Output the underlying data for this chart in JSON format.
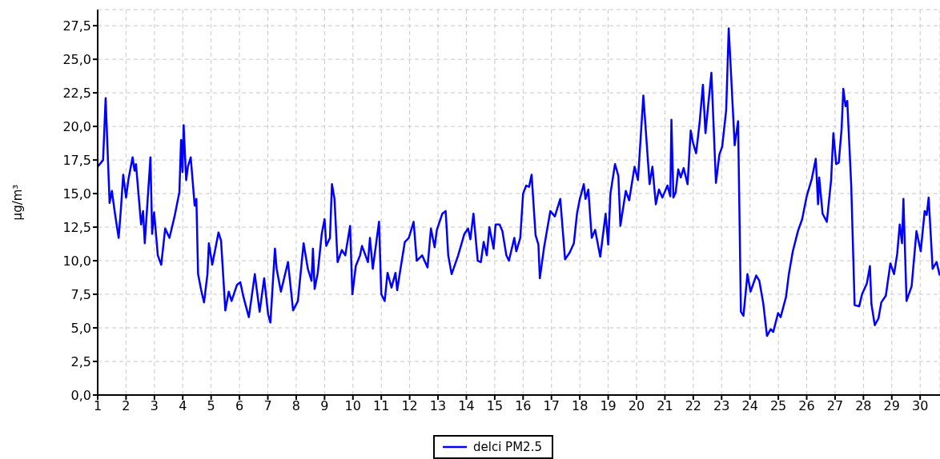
{
  "chart_data": {
    "type": "line",
    "ylabel": "µg/m³",
    "xlim": [
      1,
      30.7
    ],
    "ylim": [
      0,
      28.7
    ],
    "xticks": [
      1,
      2,
      3,
      4,
      5,
      6,
      7,
      8,
      9,
      10,
      11,
      12,
      13,
      14,
      15,
      16,
      17,
      18,
      19,
      20,
      21,
      22,
      23,
      24,
      25,
      26,
      27,
      28,
      29,
      30
    ],
    "yticks": [
      {
        "value": 0,
        "label": "0,0"
      },
      {
        "value": 2.5,
        "label": "2,5"
      },
      {
        "value": 5,
        "label": "5,0"
      },
      {
        "value": 7.5,
        "label": "7,5"
      },
      {
        "value": 10,
        "label": "10,0"
      },
      {
        "value": 12.5,
        "label": "12,5"
      },
      {
        "value": 15,
        "label": "15,0"
      },
      {
        "value": 17.5,
        "label": "17,5"
      },
      {
        "value": 20,
        "label": "20,0"
      },
      {
        "value": 22.5,
        "label": "22,5"
      },
      {
        "value": 25,
        "label": "25,0"
      },
      {
        "value": 27.5,
        "label": "27,5"
      }
    ],
    "grid": true,
    "legend": "bottom",
    "marker": "none",
    "line_style": "solid",
    "x": [
      1.0,
      1.19,
      1.28,
      1.42,
      1.5,
      1.61,
      1.74,
      1.82,
      1.9,
      2.0,
      2.08,
      2.23,
      2.3,
      2.35,
      2.53,
      2.6,
      2.66,
      2.86,
      2.92,
      2.99,
      3.12,
      3.24,
      3.38,
      3.53,
      3.71,
      3.88,
      3.94,
      3.99,
      4.03,
      4.12,
      4.18,
      4.28,
      4.42,
      4.48,
      4.54,
      4.65,
      4.75,
      4.87,
      4.92,
      5.04,
      5.26,
      5.35,
      5.5,
      5.62,
      5.72,
      5.91,
      6.03,
      6.14,
      6.33,
      6.54,
      6.71,
      6.87,
      7.01,
      7.09,
      7.25,
      7.31,
      7.46,
      7.71,
      7.89,
      8.06,
      8.26,
      8.41,
      8.54,
      8.59,
      8.65,
      8.76,
      8.9,
      9.0,
      9.06,
      9.19,
      9.26,
      9.35,
      9.46,
      9.61,
      9.73,
      9.9,
      9.98,
      10.1,
      10.25,
      10.32,
      10.53,
      10.6,
      10.7,
      10.92,
      11.0,
      11.12,
      11.22,
      11.36,
      11.5,
      11.56,
      11.67,
      11.83,
      11.97,
      12.14,
      12.25,
      12.44,
      12.63,
      12.75,
      12.88,
      12.96,
      13.15,
      13.27,
      13.36,
      13.48,
      13.71,
      13.93,
      14.06,
      14.14,
      14.25,
      14.4,
      14.51,
      14.61,
      14.72,
      14.81,
      14.96,
      15.03,
      15.17,
      15.27,
      15.41,
      15.5,
      15.69,
      15.76,
      15.9,
      16.0,
      16.11,
      16.21,
      16.3,
      16.44,
      16.54,
      16.59,
      16.74,
      16.96,
      17.12,
      17.31,
      17.48,
      17.64,
      17.79,
      17.9,
      18.0,
      18.14,
      18.2,
      18.3,
      18.42,
      18.54,
      18.72,
      18.91,
      19.0,
      19.08,
      19.24,
      19.36,
      19.43,
      19.62,
      19.74,
      19.93,
      20.05,
      20.24,
      20.46,
      20.56,
      20.68,
      20.79,
      20.91,
      21.09,
      21.19,
      21.23,
      21.3,
      21.38,
      21.47,
      21.56,
      21.66,
      21.8,
      21.91,
      21.99,
      22.1,
      22.22,
      22.34,
      22.43,
      22.64,
      22.8,
      22.92,
      23.02,
      23.16,
      23.25,
      23.46,
      23.58,
      23.68,
      23.77,
      23.91,
      24.02,
      24.22,
      24.33,
      24.47,
      24.6,
      24.73,
      24.82,
      24.99,
      25.08,
      25.27,
      25.37,
      25.51,
      25.69,
      25.84,
      26.0,
      26.18,
      26.32,
      26.4,
      26.44,
      26.56,
      26.71,
      26.86,
      26.94,
      27.04,
      27.13,
      27.23,
      27.29,
      27.37,
      27.43,
      27.57,
      27.69,
      27.85,
      27.95,
      28.12,
      28.23,
      28.28,
      28.4,
      28.53,
      28.63,
      28.79,
      28.95,
      29.08,
      29.19,
      29.28,
      29.36,
      29.41,
      29.52,
      29.7,
      29.87,
      30.02,
      30.16,
      30.23,
      30.3,
      30.44,
      30.58,
      30.69
    ],
    "series": [
      {
        "name": "delci PM2.5",
        "color": "#0000ff",
        "values": [
          17.0,
          17.5,
          22.1,
          14.3,
          15.2,
          13.5,
          11.7,
          13.9,
          16.4,
          14.7,
          16.0,
          17.7,
          16.7,
          17.2,
          12.7,
          13.7,
          11.3,
          17.7,
          12.0,
          13.6,
          10.4,
          9.7,
          12.4,
          11.7,
          13.3,
          15.1,
          19.0,
          16.6,
          20.1,
          16.0,
          17.0,
          17.7,
          14.1,
          14.6,
          9.0,
          7.8,
          6.9,
          9.0,
          11.3,
          9.7,
          12.1,
          11.5,
          6.3,
          7.7,
          7.0,
          8.2,
          8.4,
          7.3,
          5.8,
          9.0,
          6.2,
          8.7,
          6.0,
          5.4,
          10.9,
          9.4,
          7.7,
          9.9,
          6.3,
          7.0,
          11.3,
          9.4,
          8.5,
          10.9,
          7.9,
          9.1,
          12.0,
          13.1,
          11.1,
          11.7,
          15.7,
          14.6,
          9.9,
          10.8,
          10.4,
          12.6,
          7.5,
          9.6,
          10.4,
          11.1,
          9.9,
          11.7,
          9.4,
          12.9,
          7.5,
          7.0,
          9.1,
          8.0,
          9.1,
          7.8,
          9.3,
          11.4,
          11.7,
          12.9,
          10.0,
          10.4,
          9.5,
          12.4,
          11.0,
          12.3,
          13.5,
          13.7,
          10.4,
          9.0,
          10.4,
          12.0,
          12.4,
          11.6,
          13.5,
          10.0,
          9.9,
          11.4,
          10.4,
          12.5,
          10.9,
          12.7,
          12.7,
          12.2,
          10.4,
          10.0,
          11.7,
          10.7,
          11.7,
          15.0,
          15.6,
          15.5,
          16.4,
          11.9,
          11.2,
          8.7,
          11.0,
          13.7,
          13.3,
          14.6,
          10.1,
          10.6,
          11.3,
          13.5,
          14.6,
          15.7,
          14.6,
          15.3,
          11.7,
          12.3,
          10.3,
          13.5,
          11.2,
          15.0,
          17.2,
          16.3,
          12.6,
          15.2,
          14.5,
          17.0,
          16.0,
          22.3,
          15.7,
          17.0,
          14.2,
          15.3,
          14.7,
          15.6,
          14.8,
          20.5,
          14.7,
          15.1,
          16.8,
          16.2,
          16.9,
          15.7,
          19.7,
          18.8,
          18.0,
          20.2,
          23.1,
          19.5,
          24.0,
          15.8,
          17.9,
          18.5,
          21.2,
          27.3,
          18.6,
          20.4,
          6.2,
          5.9,
          9.0,
          7.7,
          8.9,
          8.5,
          6.8,
          4.4,
          4.9,
          4.7,
          6.1,
          5.8,
          7.3,
          9.0,
          10.7,
          12.2,
          13.1,
          14.8,
          16.1,
          17.6,
          14.2,
          16.2,
          13.5,
          12.9,
          16.0,
          19.5,
          17.2,
          17.3,
          19.8,
          22.8,
          21.5,
          21.9,
          15.6,
          6.7,
          6.6,
          7.5,
          8.3,
          9.6,
          6.8,
          5.2,
          5.7,
          6.9,
          7.4,
          9.8,
          9.0,
          10.5,
          12.7,
          11.3,
          14.6,
          7.0,
          8.1,
          12.2,
          10.7,
          13.7,
          13.4,
          14.7,
          9.4,
          9.9,
          8.9
        ]
      }
    ]
  }
}
